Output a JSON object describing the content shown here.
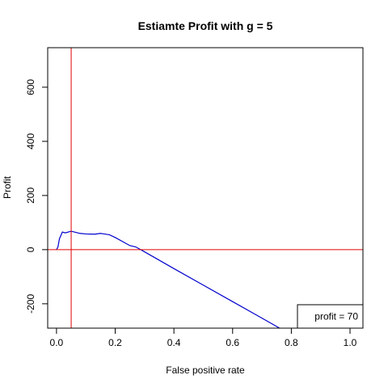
{
  "chart_data": {
    "type": "line",
    "title": "Estiamte Profit with g = 5",
    "xlabel": "False positive rate",
    "ylabel": "Profit",
    "x": [
      0,
      0.005,
      0.01,
      0.02,
      0.03,
      0.05,
      0.08,
      0.1,
      0.13,
      0.15,
      0.18,
      0.2,
      0.25,
      0.27,
      0.3,
      0.35,
      0.4,
      0.5,
      0.6,
      0.7,
      0.76
    ],
    "series": [
      {
        "name": "Profit",
        "color": "#0000cd",
        "values": [
          0,
          10,
          40,
          65,
          62,
          68,
          60,
          58,
          57,
          60,
          55,
          45,
          15,
          10,
          -8,
          -39,
          -70,
          -131,
          -192,
          -253,
          -290
        ]
      }
    ],
    "xlim": [
      -0.03,
      1.044
    ],
    "ylim": [
      -290,
      746
    ],
    "xticks": [
      {
        "value": 0,
        "label": "0.0"
      },
      {
        "value": 0.2,
        "label": "0.2"
      },
      {
        "value": 0.4,
        "label": "0.4"
      },
      {
        "value": 0.6,
        "label": "0.6"
      },
      {
        "value": 0.8,
        "label": "0.8"
      },
      {
        "value": 1,
        "label": "1.0"
      }
    ],
    "yticks": [
      -200,
      0,
      200,
      400,
      600
    ],
    "vlines": [
      0.05
    ],
    "hlines": [
      0
    ],
    "refline_color": "#e00000",
    "legend_text": "profit = 70",
    "legend_corner": "bottomright"
  }
}
